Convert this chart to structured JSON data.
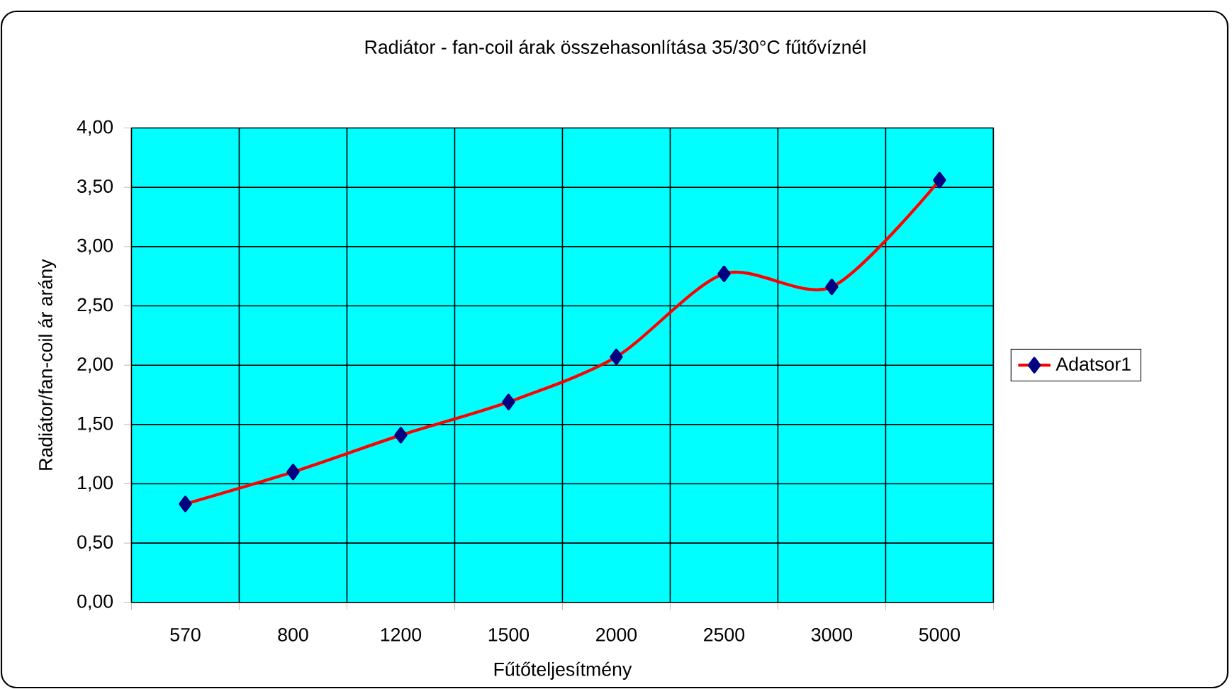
{
  "chart_data": {
    "type": "line",
    "title": "Radiátor - fan-coil árak összehasonlítása 35/30°C fűtővíznél",
    "xlabel": "Fűtőteljesítmény",
    "ylabel": "Radiátor/fan-coil ár arány",
    "categories": [
      "570",
      "800",
      "1200",
      "1500",
      "2000",
      "2500",
      "3000",
      "5000"
    ],
    "series": [
      {
        "name": "Adatsor1",
        "color": "#ff0000",
        "values": [
          0.83,
          1.1,
          1.41,
          1.69,
          2.07,
          2.77,
          2.66,
          3.56
        ]
      }
    ],
    "ylim": [
      0,
      4
    ],
    "yticks": [
      {
        "value": 0,
        "label": "0,00"
      },
      {
        "value": 0.5,
        "label": "0,50"
      },
      {
        "value": 1,
        "label": "1,00"
      },
      {
        "value": 1.5,
        "label": "1,50"
      },
      {
        "value": 2,
        "label": "2,00"
      },
      {
        "value": 2.5,
        "label": "2,50"
      },
      {
        "value": 3,
        "label": "3,00"
      },
      {
        "value": 3.5,
        "label": "3,50"
      },
      {
        "value": 4,
        "label": "4,00"
      }
    ],
    "grid": true,
    "legend": "right",
    "marker": "diamond",
    "line_style": "solid"
  }
}
